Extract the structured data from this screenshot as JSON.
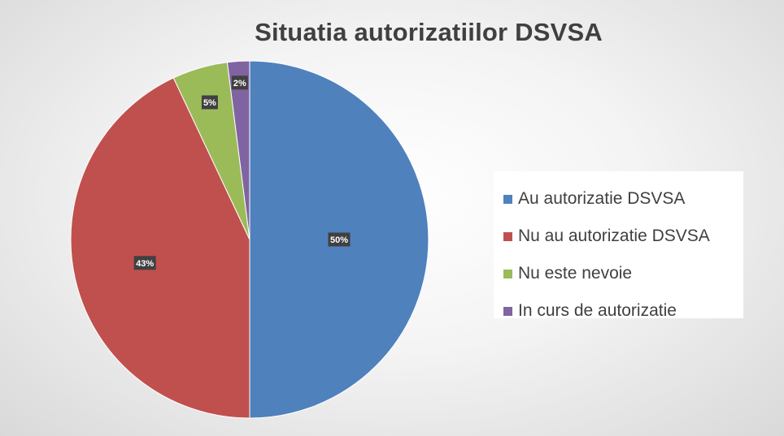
{
  "chart_data": {
    "type": "pie",
    "title": "Situatia autorizatiilor DSVSA",
    "legend_position": "right",
    "slices": [
      {
        "label": "Au autorizatie DSVSA",
        "value": 50,
        "display": "50%",
        "color": "#4f81bd"
      },
      {
        "label": "Nu au autorizatie DSVSA",
        "value": 43,
        "display": "43%",
        "color": "#c0504d"
      },
      {
        "label": "Nu este nevoie",
        "value": 5,
        "display": "5%",
        "color": "#9bbb59"
      },
      {
        "label": "In curs de autorizatie",
        "value": 2,
        "display": "2%",
        "color": "#8064a2"
      }
    ]
  }
}
